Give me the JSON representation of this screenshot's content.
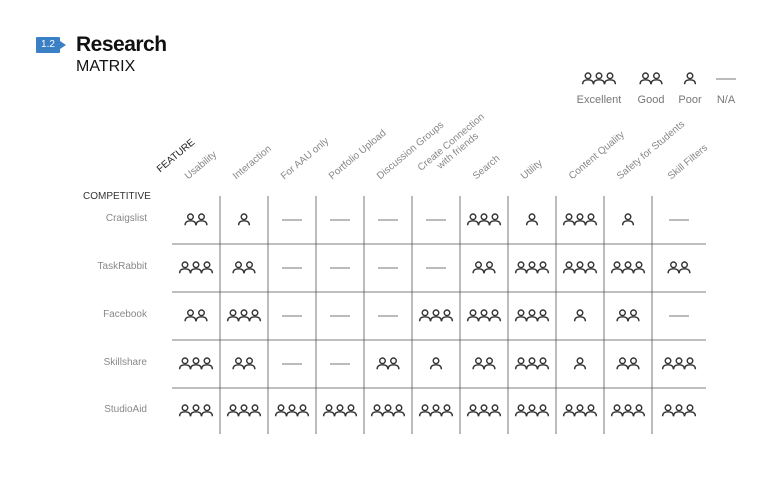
{
  "header": {
    "badge": "1.2",
    "title": "Research",
    "subtitle": "MATRIX"
  },
  "legend": [
    {
      "icon": "people-three-icon",
      "label": "Excellent",
      "count": 3
    },
    {
      "icon": "people-two-icon",
      "label": "Good",
      "count": 2
    },
    {
      "icon": "person-icon",
      "label": "Poor",
      "count": 1
    },
    {
      "icon": "dash-icon",
      "label": "N/A",
      "count": 0
    }
  ],
  "matrix": {
    "feature_label": "FEATURE",
    "competitive_label": "COMPETITIVE",
    "features": [
      "Usability",
      "Interaction",
      "For AAU only",
      "Portfolio Upload",
      "Discussion Groups",
      "Create Connection\nwith friends",
      "Search",
      "Utility",
      "Content Quality",
      "Safety for Students",
      "Skill Filters"
    ],
    "rows": [
      {
        "name": "Craigslist",
        "ratings": [
          2,
          1,
          0,
          0,
          0,
          0,
          3,
          1,
          3,
          1,
          0
        ]
      },
      {
        "name": "TaskRabbit",
        "ratings": [
          3,
          2,
          0,
          0,
          0,
          0,
          2,
          3,
          3,
          3,
          2
        ]
      },
      {
        "name": "Facebook",
        "ratings": [
          2,
          3,
          0,
          0,
          0,
          3,
          3,
          3,
          1,
          2,
          0
        ]
      },
      {
        "name": "Skillshare",
        "ratings": [
          3,
          2,
          0,
          0,
          2,
          1,
          2,
          3,
          1,
          2,
          3
        ]
      },
      {
        "name": "StudioAid",
        "ratings": [
          3,
          3,
          3,
          3,
          3,
          3,
          3,
          3,
          3,
          3,
          3
        ]
      }
    ]
  }
}
